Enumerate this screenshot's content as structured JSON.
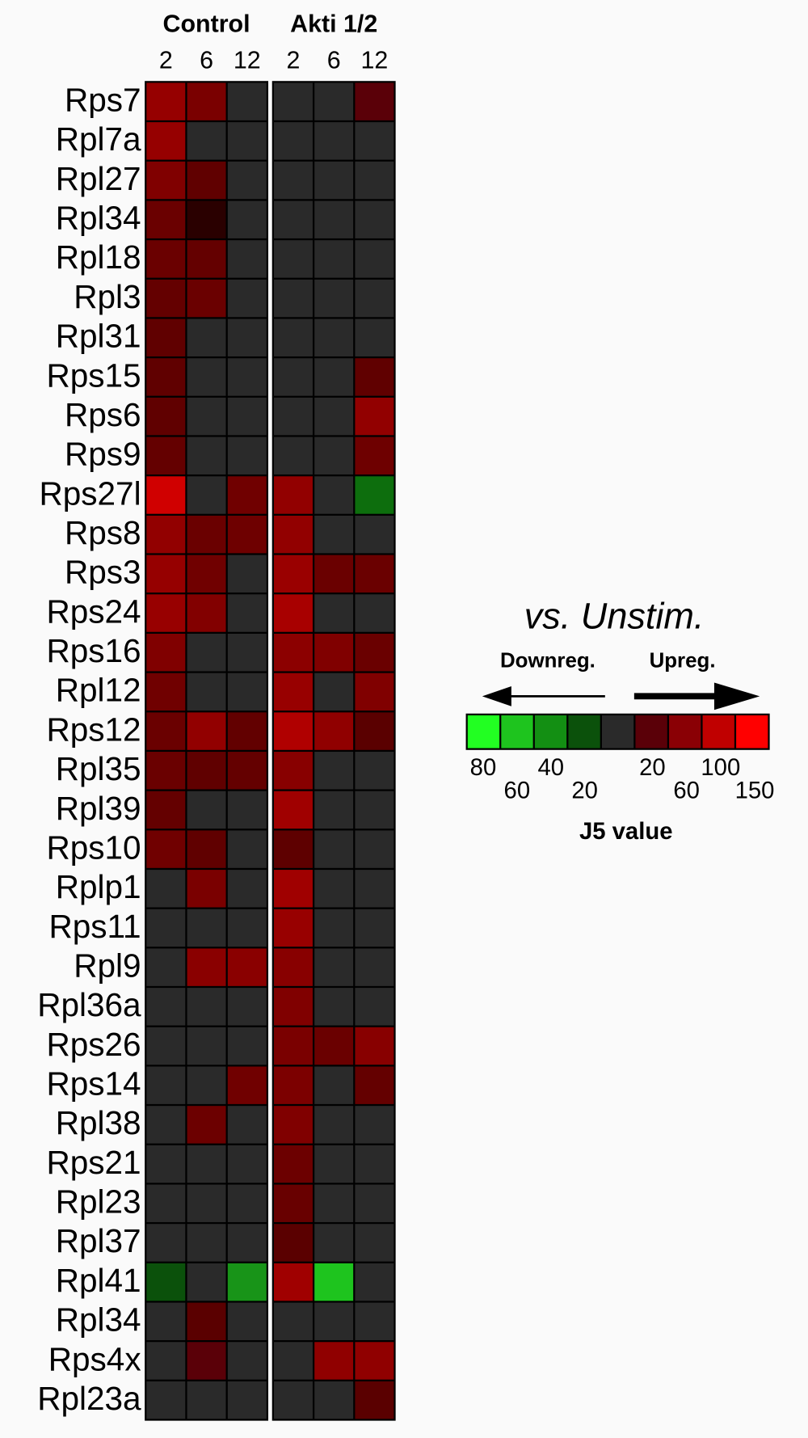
{
  "chart_data": {
    "type": "heatmap",
    "groups": [
      {
        "name": "Control",
        "columns": [
          2,
          6,
          12
        ]
      },
      {
        "name": "Akti 1/2",
        "columns": [
          2,
          6,
          12
        ]
      }
    ],
    "rows": [
      {
        "label": "Rps7",
        "colors": [
          "#960000",
          "#7a0000",
          "#2a2a2a",
          "#2a2a2a",
          "#2a2a2a",
          "#5a0008"
        ]
      },
      {
        "label": "Rpl7a",
        "colors": [
          "#960000",
          "#2a2a2a",
          "#2a2a2a",
          "#2a2a2a",
          "#2a2a2a",
          "#2a2a2a"
        ]
      },
      {
        "label": "Rpl27",
        "colors": [
          "#800000",
          "#600000",
          "#2a2a2a",
          "#2a2a2a",
          "#2a2a2a",
          "#2a2a2a"
        ]
      },
      {
        "label": "Rpl34",
        "colors": [
          "#6a0000",
          "#2a0000",
          "#2a2a2a",
          "#2a2a2a",
          "#2a2a2a",
          "#2a2a2a"
        ]
      },
      {
        "label": "Rpl18",
        "colors": [
          "#6a0000",
          "#640000",
          "#2a2a2a",
          "#2a2a2a",
          "#2a2a2a",
          "#2a2a2a"
        ]
      },
      {
        "label": "Rpl3",
        "colors": [
          "#640000",
          "#6a0000",
          "#2a2a2a",
          "#2a2a2a",
          "#2a2a2a",
          "#2a2a2a"
        ]
      },
      {
        "label": "Rpl31",
        "colors": [
          "#600000",
          "#2a2a2a",
          "#2a2a2a",
          "#2a2a2a",
          "#2a2a2a",
          "#2a2a2a"
        ]
      },
      {
        "label": "Rps15",
        "colors": [
          "#600000",
          "#2a2a2a",
          "#2a2a2a",
          "#2a2a2a",
          "#2a2a2a",
          "#600000"
        ]
      },
      {
        "label": "Rps6",
        "colors": [
          "#600000",
          "#2a2a2a",
          "#2a2a2a",
          "#2a2a2a",
          "#2a2a2a",
          "#920000"
        ]
      },
      {
        "label": "Rps9",
        "colors": [
          "#640000",
          "#2a2a2a",
          "#2a2a2a",
          "#2a2a2a",
          "#2a2a2a",
          "#6e0000"
        ]
      },
      {
        "label": "Rps27l",
        "colors": [
          "#d00000",
          "#2a2a2a",
          "#700000",
          "#920000",
          "#2a2a2a",
          "#0d6e0d"
        ]
      },
      {
        "label": "Rps8",
        "colors": [
          "#920000",
          "#6a0000",
          "#6e0000",
          "#920000",
          "#2a2a2a",
          "#2a2a2a"
        ]
      },
      {
        "label": "Rps3",
        "colors": [
          "#960000",
          "#700000",
          "#2a2a2a",
          "#9a0000",
          "#6a0000",
          "#6a0000"
        ]
      },
      {
        "label": "Rps24",
        "colors": [
          "#980000",
          "#820000",
          "#2a2a2a",
          "#a80000",
          "#2a2a2a",
          "#2a2a2a"
        ]
      },
      {
        "label": "Rps16",
        "colors": [
          "#800000",
          "#2a2a2a",
          "#2a2a2a",
          "#8c0000",
          "#800000",
          "#6a0000"
        ]
      },
      {
        "label": "Rpl12",
        "colors": [
          "#700000",
          "#2a2a2a",
          "#2a2a2a",
          "#980000",
          "#2a2a2a",
          "#800000"
        ]
      },
      {
        "label": "Rps12",
        "colors": [
          "#6a0000",
          "#920000",
          "#620000",
          "#b00000",
          "#900000",
          "#5a0000"
        ]
      },
      {
        "label": "Rpl35",
        "colors": [
          "#6a0000",
          "#600000",
          "#640000",
          "#880000",
          "#2a2a2a",
          "#2a2a2a"
        ]
      },
      {
        "label": "Rpl39",
        "colors": [
          "#640000",
          "#2a2a2a",
          "#2a2a2a",
          "#a00000",
          "#2a2a2a",
          "#2a2a2a"
        ]
      },
      {
        "label": "Rps10",
        "colors": [
          "#700000",
          "#600000",
          "#2a2a2a",
          "#5e0000",
          "#2a2a2a",
          "#2a2a2a"
        ]
      },
      {
        "label": "Rplp1",
        "colors": [
          "#2a2a2a",
          "#7a0000",
          "#2a2a2a",
          "#a00000",
          "#2a2a2a",
          "#2a2a2a"
        ]
      },
      {
        "label": "Rps11",
        "colors": [
          "#2a2a2a",
          "#2a2a2a",
          "#2a2a2a",
          "#980000",
          "#2a2a2a",
          "#2a2a2a"
        ]
      },
      {
        "label": "Rpl9",
        "colors": [
          "#2a2a2a",
          "#8a0000",
          "#8a0000",
          "#880000",
          "#2a2a2a",
          "#2a2a2a"
        ]
      },
      {
        "label": "Rpl36a",
        "colors": [
          "#2a2a2a",
          "#2a2a2a",
          "#2a2a2a",
          "#800000",
          "#2a2a2a",
          "#2a2a2a"
        ]
      },
      {
        "label": "Rps26",
        "colors": [
          "#2a2a2a",
          "#2a2a2a",
          "#2a2a2a",
          "#7a0000",
          "#6a0000",
          "#880000"
        ]
      },
      {
        "label": "Rps14",
        "colors": [
          "#2a2a2a",
          "#2a2a2a",
          "#700000",
          "#7c0000",
          "#2a2a2a",
          "#640000"
        ]
      },
      {
        "label": "Rpl38",
        "colors": [
          "#2a2a2a",
          "#6c0000",
          "#2a2a2a",
          "#800000",
          "#2a2a2a",
          "#2a2a2a"
        ]
      },
      {
        "label": "Rps21",
        "colors": [
          "#2a2a2a",
          "#2a2a2a",
          "#2a2a2a",
          "#6c0000",
          "#2a2a2a",
          "#2a2a2a"
        ]
      },
      {
        "label": "Rpl23",
        "colors": [
          "#2a2a2a",
          "#2a2a2a",
          "#2a2a2a",
          "#680000",
          "#2a2a2a",
          "#2a2a2a"
        ]
      },
      {
        "label": "Rpl37",
        "colors": [
          "#2a2a2a",
          "#2a2a2a",
          "#2a2a2a",
          "#5a0000",
          "#2a2a2a",
          "#2a2a2a"
        ]
      },
      {
        "label": "Rpl41",
        "colors": [
          "#0b510b",
          "#2a2a2a",
          "#189418",
          "#a00000",
          "#1ec41e",
          "#2a2a2a"
        ]
      },
      {
        "label": "Rpl34",
        "colors": [
          "#2a2a2a",
          "#5a0000",
          "#2a2a2a",
          "#2a2a2a",
          "#2a2a2a",
          "#2a2a2a"
        ]
      },
      {
        "label": "Rps4x",
        "colors": [
          "#2a2a2a",
          "#5a0008",
          "#2a2a2a",
          "#2a2a2a",
          "#900000",
          "#900000"
        ]
      },
      {
        "label": "Rpl23a",
        "colors": [
          "#2a2a2a",
          "#2a2a2a",
          "#2a2a2a",
          "#2a2a2a",
          "#2a2a2a",
          "#5a0000"
        ]
      }
    ],
    "legend": {
      "title": "vs. Unstim.",
      "down_label": "Downreg.",
      "up_label": "Upreg.",
      "palette": [
        "#22ff22",
        "#1ec41e",
        "#138f13",
        "#0b510b",
        "#2a2a2a",
        "#5a0008",
        "#8a0005",
        "#c00000",
        "#ff0000"
      ],
      "down_ticks": [
        80,
        60,
        40,
        20
      ],
      "up_ticks": [
        20,
        60,
        100,
        150
      ],
      "xlabel": "J5 value"
    }
  }
}
